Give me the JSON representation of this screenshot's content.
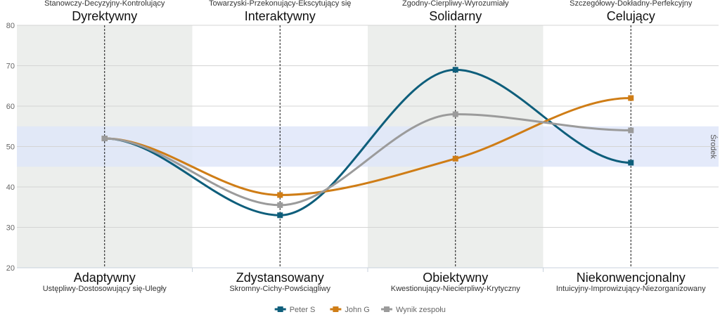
{
  "chart_data": {
    "type": "line",
    "ylim": [
      20,
      80
    ],
    "yticks": [
      20,
      30,
      40,
      50,
      60,
      70,
      80
    ],
    "grid": true,
    "band": {
      "from": 45,
      "to": 55,
      "label": "Środek",
      "color": "#dfe6f9"
    },
    "shading_color": "#eceeec",
    "columns": [
      {
        "top_label": "Dyrektywny",
        "top_desc": "Stanowczy-Decyzyjny-Kontrolujący",
        "bottom_label": "Adaptywny",
        "bottom_desc": "Ustępliwy-Dostosowujący się-Uległy",
        "shaded": true
      },
      {
        "top_label": "Interaktywny",
        "top_desc": "Towarzyski-Przekonujący-Ekscytujący się",
        "bottom_label": "Zdystansowany",
        "bottom_desc": "Skromny-Cichy-Powściągliwy",
        "shaded": false
      },
      {
        "top_label": "Solidarny",
        "top_desc": "Zgodny-Cierpliwy-Wyrozumiały",
        "bottom_label": "Obiektywny",
        "bottom_desc": "Kwestionujący-Niecierpliwy-Krytyczny",
        "shaded": true
      },
      {
        "top_label": "Celujący",
        "top_desc": "Szczegółowy-Dokładny-Perfekcyjny",
        "bottom_label": "Niekonwencjonalny",
        "bottom_desc": "Intuicyjny-Improwizujący-Niezorganizowany",
        "shaded": false
      }
    ],
    "series": [
      {
        "name": "Peter S",
        "color": "#0e5e7b",
        "values": [
          52,
          33,
          69,
          46
        ]
      },
      {
        "name": "John G",
        "color": "#cf7d16",
        "values": [
          52,
          38,
          47,
          62
        ]
      },
      {
        "name": "Wynik zespołu",
        "color": "#9b9b9b",
        "values": [
          52,
          35.5,
          58,
          54
        ]
      }
    ],
    "legend_position": "bottom-center"
  }
}
